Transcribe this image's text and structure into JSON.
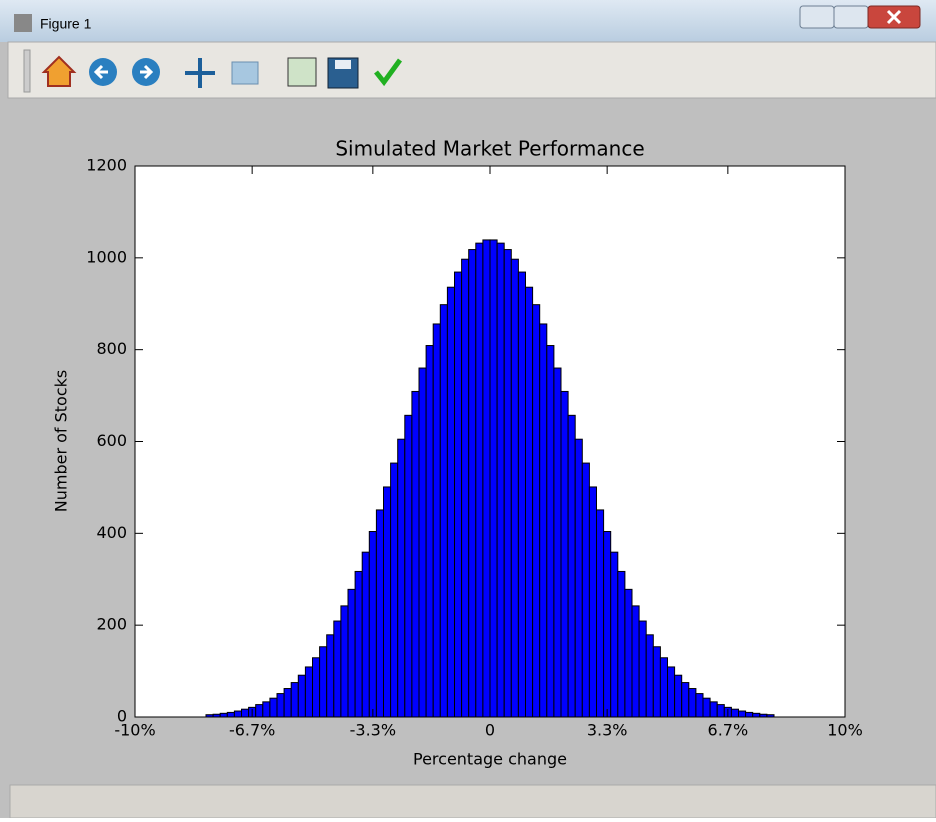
{
  "window": {
    "title": "Figure 1"
  },
  "chart_data": {
    "type": "histogram",
    "title": "Simulated Market Performance",
    "xlabel": "Percentage change",
    "ylabel": "Number of Stocks",
    "bins": [
      -8,
      -7.8,
      -7.6,
      -7.4,
      -7.2,
      -7,
      -6.8,
      -6.6,
      -6.4,
      -6.2,
      -6,
      -5.8,
      -5.6,
      -5.4,
      -5.2,
      -5,
      -4.8,
      -4.6,
      -4.4,
      -4.2,
      -4,
      -3.8,
      -3.6,
      -3.4,
      -3.2,
      -3,
      -2.8,
      -2.6,
      -2.4,
      -2.2,
      -2,
      -1.8,
      -1.6,
      -1.4,
      -1.2,
      -1,
      -0.8,
      -0.6,
      -0.4,
      -0.2,
      0,
      0.2,
      0.4,
      0.6,
      0.8,
      1,
      1.2,
      1.4,
      1.6,
      1.8,
      2,
      2.2,
      2.4,
      2.6,
      2.8,
      3,
      3.2,
      3.4,
      3.6,
      3.8,
      4,
      4.2,
      4.4,
      4.6,
      4.8,
      5,
      5.2,
      5.4,
      5.6,
      5.8,
      6,
      6.2,
      6.4,
      6.6,
      6.8,
      7,
      7.2,
      7.4,
      7.6,
      7.8,
      8
    ],
    "values": [
      5,
      6,
      8,
      10,
      13,
      17,
      21,
      27,
      33,
      41,
      51,
      62,
      75,
      91,
      109,
      129,
      153,
      179,
      209,
      242,
      278,
      317,
      359,
      404,
      451,
      501,
      553,
      605,
      657,
      709,
      760,
      809,
      856,
      898,
      936,
      969,
      997,
      1018,
      1032,
      1039,
      1039,
      1032,
      1018,
      997,
      969,
      936,
      898,
      856,
      809,
      760,
      709,
      657,
      605,
      553,
      501,
      451,
      404,
      359,
      317,
      278,
      242,
      209,
      179,
      153,
      129,
      109,
      91,
      75,
      62,
      51,
      41,
      33,
      27,
      21,
      17,
      13,
      10,
      8,
      6,
      5
    ],
    "color": "#0000ff",
    "edgecolor": "#000000",
    "xlim": [
      -10,
      10
    ],
    "xticks": [
      {
        "value": -10,
        "label": "-10%"
      },
      {
        "value": -6.7,
        "label": "-6.7%"
      },
      {
        "value": -3.3,
        "label": "-3.3%"
      },
      0,
      {
        "value": 3.3,
        "label": "3.3%"
      },
      {
        "value": 6.7,
        "label": "6.7%"
      },
      {
        "value": 10,
        "label": "10%"
      }
    ],
    "ylim": [
      0,
      1200
    ],
    "yticks": [
      0,
      200,
      400,
      600,
      800,
      1000,
      1200
    ]
  }
}
